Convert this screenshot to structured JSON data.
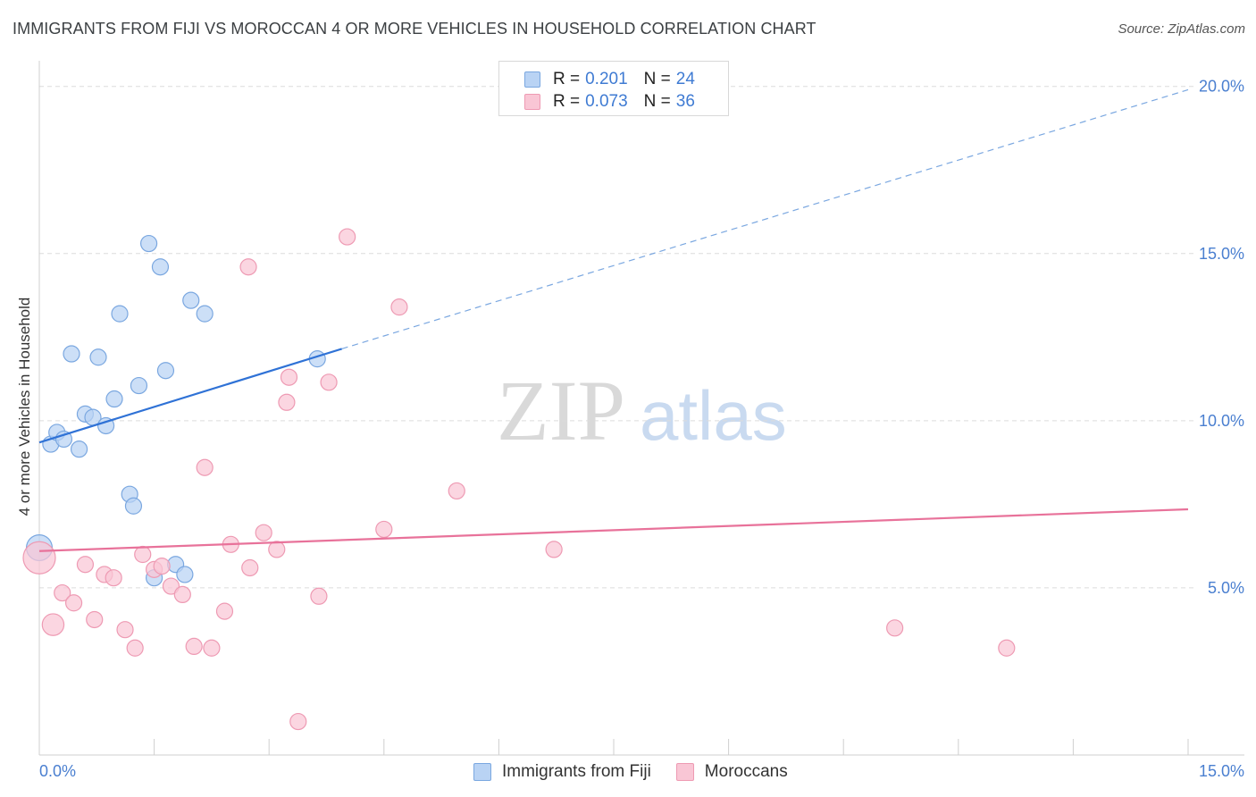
{
  "header": {
    "title": "IMMIGRANTS FROM FIJI VS MOROCCAN 4 OR MORE VEHICLES IN HOUSEHOLD CORRELATION CHART",
    "source": "Source: ZipAtlas.com"
  },
  "watermark": {
    "zip": "ZIP",
    "atlas": "atlas"
  },
  "legend": {
    "r_label": "R =",
    "n_label": "N =",
    "series": [
      {
        "name": "Immigrants from Fiji",
        "r": "0.201",
        "n": "24",
        "fill": "#b9d3f4",
        "stroke": "#7aa7e0"
      },
      {
        "name": "Moroccans",
        "r": "0.073",
        "n": "36",
        "fill": "#f9c6d5",
        "stroke": "#ee9ab3"
      }
    ]
  },
  "chart_data": {
    "type": "scatter",
    "title": "IMMIGRANTS FROM FIJI VS MOROCCAN 4 OR MORE VEHICLES IN HOUSEHOLD CORRELATION CHART",
    "xlabel": "",
    "ylabel": "4 or more Vehicles in Household",
    "xlim": [
      0,
      15
    ],
    "ylim": [
      0,
      20.5
    ],
    "x_tick_labels": [
      "0.0%",
      "15.0%"
    ],
    "y_ticks": [
      5,
      10,
      15,
      20
    ],
    "y_tick_labels": [
      "5.0%",
      "10.0%",
      "15.0%",
      "20.0%"
    ],
    "grid": true,
    "series": [
      {
        "name": "Immigrants from Fiji",
        "color": "#7aa7e0",
        "fill": "#b9d3f4",
        "points": [
          {
            "x": 0.0,
            "y": 6.2,
            "s": 1.6
          },
          {
            "x": 0.15,
            "y": 9.3,
            "s": 1
          },
          {
            "x": 0.23,
            "y": 9.65,
            "s": 1
          },
          {
            "x": 0.32,
            "y": 9.45,
            "s": 1
          },
          {
            "x": 0.42,
            "y": 12.0,
            "s": 1
          },
          {
            "x": 0.52,
            "y": 9.15,
            "s": 1
          },
          {
            "x": 0.6,
            "y": 10.2,
            "s": 1
          },
          {
            "x": 0.7,
            "y": 10.1,
            "s": 1
          },
          {
            "x": 0.77,
            "y": 11.9,
            "s": 1
          },
          {
            "x": 0.87,
            "y": 9.85,
            "s": 1
          },
          {
            "x": 0.98,
            "y": 10.65,
            "s": 1
          },
          {
            "x": 1.05,
            "y": 13.2,
            "s": 1
          },
          {
            "x": 1.18,
            "y": 7.8,
            "s": 1
          },
          {
            "x": 1.23,
            "y": 7.45,
            "s": 1
          },
          {
            "x": 1.3,
            "y": 11.05,
            "s": 1
          },
          {
            "x": 1.43,
            "y": 15.3,
            "s": 1
          },
          {
            "x": 1.5,
            "y": 5.3,
            "s": 1
          },
          {
            "x": 1.58,
            "y": 14.6,
            "s": 1
          },
          {
            "x": 1.65,
            "y": 11.5,
            "s": 1
          },
          {
            "x": 1.78,
            "y": 5.7,
            "s": 1
          },
          {
            "x": 1.9,
            "y": 5.4,
            "s": 1
          },
          {
            "x": 1.98,
            "y": 13.6,
            "s": 1
          },
          {
            "x": 2.16,
            "y": 13.2,
            "s": 1
          },
          {
            "x": 3.63,
            "y": 11.85,
            "s": 1
          }
        ],
        "trend": {
          "x1": 0.0,
          "y1": 9.35,
          "x2": 3.95,
          "y2": 12.15,
          "dashed_to_x": 15.0,
          "dashed_to_y": 19.9
        }
      },
      {
        "name": "Moroccans",
        "color": "#ee9ab3",
        "fill": "#f9c6d5",
        "points": [
          {
            "x": 0.0,
            "y": 5.9,
            "s": 2
          },
          {
            "x": 0.18,
            "y": 3.9,
            "s": 1.35
          },
          {
            "x": 0.3,
            "y": 4.85,
            "s": 1
          },
          {
            "x": 0.45,
            "y": 4.55,
            "s": 1
          },
          {
            "x": 0.6,
            "y": 5.7,
            "s": 1
          },
          {
            "x": 0.72,
            "y": 4.05,
            "s": 1
          },
          {
            "x": 0.85,
            "y": 5.4,
            "s": 1
          },
          {
            "x": 0.97,
            "y": 5.3,
            "s": 1
          },
          {
            "x": 1.12,
            "y": 3.75,
            "s": 1
          },
          {
            "x": 1.25,
            "y": 3.2,
            "s": 1
          },
          {
            "x": 1.35,
            "y": 6.0,
            "s": 1
          },
          {
            "x": 1.5,
            "y": 5.55,
            "s": 1
          },
          {
            "x": 1.6,
            "y": 5.65,
            "s": 1
          },
          {
            "x": 1.72,
            "y": 5.05,
            "s": 1
          },
          {
            "x": 1.87,
            "y": 4.8,
            "s": 1
          },
          {
            "x": 2.02,
            "y": 3.25,
            "s": 1
          },
          {
            "x": 2.16,
            "y": 8.6,
            "s": 1
          },
          {
            "x": 2.25,
            "y": 3.2,
            "s": 1
          },
          {
            "x": 2.42,
            "y": 4.3,
            "s": 1
          },
          {
            "x": 2.5,
            "y": 6.3,
            "s": 1
          },
          {
            "x": 2.73,
            "y": 14.6,
            "s": 1
          },
          {
            "x": 2.75,
            "y": 5.6,
            "s": 1
          },
          {
            "x": 2.93,
            "y": 6.65,
            "s": 1
          },
          {
            "x": 3.1,
            "y": 6.15,
            "s": 1
          },
          {
            "x": 3.23,
            "y": 10.55,
            "s": 1
          },
          {
            "x": 3.26,
            "y": 11.3,
            "s": 1
          },
          {
            "x": 3.38,
            "y": 1.0,
            "s": 1
          },
          {
            "x": 3.65,
            "y": 4.75,
            "s": 1
          },
          {
            "x": 3.78,
            "y": 11.15,
            "s": 1
          },
          {
            "x": 4.02,
            "y": 15.5,
            "s": 1
          },
          {
            "x": 4.5,
            "y": 6.75,
            "s": 1
          },
          {
            "x": 4.7,
            "y": 13.4,
            "s": 1
          },
          {
            "x": 5.45,
            "y": 7.9,
            "s": 1
          },
          {
            "x": 6.72,
            "y": 6.15,
            "s": 1
          },
          {
            "x": 11.17,
            "y": 3.8,
            "s": 1
          },
          {
            "x": 12.63,
            "y": 3.2,
            "s": 1
          }
        ],
        "trend": {
          "x1": 0.0,
          "y1": 6.1,
          "x2": 15.0,
          "y2": 7.35
        }
      }
    ]
  }
}
